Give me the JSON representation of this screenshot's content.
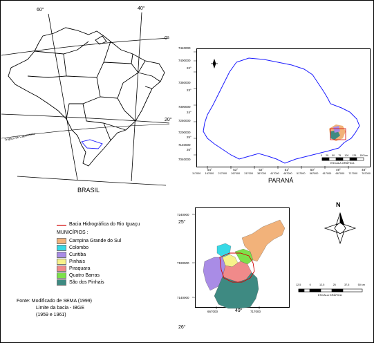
{
  "brasil": {
    "title": "BRASIL",
    "lon_labels": [
      "60°",
      "40°"
    ],
    "lat_labels": [
      "0°",
      "20°"
    ],
    "tropic_label": "Trópico de Capricórnio"
  },
  "parana": {
    "title": "PARANÁ",
    "y_labels": [
      "7440000",
      "7400000",
      "7350000",
      "7300000",
      "7250000",
      "7200000",
      "7140000",
      "7040000"
    ],
    "lat_labels": [
      "22°",
      "23°",
      "24°",
      "25°",
      "26°"
    ],
    "x_labels": [
      "117000",
      "167000",
      "217000",
      "267000",
      "317000",
      "367000",
      "417000",
      "467000",
      "517000",
      "567000",
      "617000",
      "667000",
      "717000",
      "767000"
    ],
    "lon_labels": [
      "54°",
      "53°",
      "52°",
      "51°",
      "50°",
      "49°",
      "48°"
    ],
    "scale_label": "ESCALA GRÁFICA",
    "scale_ticks": [
      "0",
      "25",
      "50",
      "75",
      "100",
      "125",
      "150 km"
    ]
  },
  "basin": {
    "y_top": "7240000",
    "y_mid": "7190000",
    "y_bot": "7140000",
    "lat_top": "25°",
    "lat_bot": "26°",
    "x_left": "667000",
    "x_mid": "49°",
    "x_right": "717000",
    "scale_label": "ESCALA GRÁFICA",
    "scale_ticks": [
      "12,5",
      "0",
      "12,5",
      "25",
      "37,5",
      "50 km"
    ],
    "north_label": "N"
  },
  "legend": {
    "basin_label": "Bacia Hidrográfica do Rio Iguaçu",
    "municipios_label": "MUNICÍPIOS :",
    "items": [
      {
        "name": "Campina Grande do Sul",
        "color": "#f2b27a"
      },
      {
        "name": "Colombo",
        "color": "#37d9e6"
      },
      {
        "name": "Curitiba",
        "color": "#a98ce6"
      },
      {
        "name": "Pinhais",
        "color": "#f7f28a"
      },
      {
        "name": "Piraquara",
        "color": "#f08a8a"
      },
      {
        "name": "Quatro Barras",
        "color": "#7de04a"
      },
      {
        "name": "São dos Pinhais",
        "color": "#3e8a82"
      }
    ]
  },
  "source": {
    "line1": "Fonte: Modificado de SEMA (1999)",
    "line2": "Limite da bacia - IBGE",
    "line3": "(1959 e 1961)"
  },
  "colors": {
    "parana_outline": "#1a1aff",
    "basin_outline": "#d00000"
  }
}
